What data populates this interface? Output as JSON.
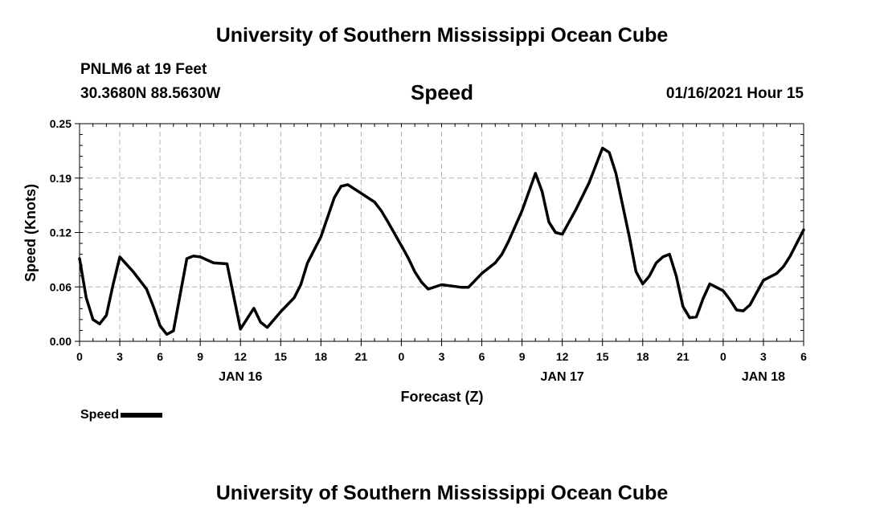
{
  "header": {
    "title": "University of Southern Mississippi Ocean Cube"
  },
  "footer": {
    "title": "University of Southern Mississippi Ocean Cube"
  },
  "station": {
    "name": "PNLM6 at 19 Feet",
    "coords": "30.3680N 88.5630W"
  },
  "chart_data": {
    "type": "line",
    "title": "Speed",
    "date_label": "01/16/2021 Hour 15",
    "xlabel": "Forecast (Z)",
    "ylabel": "Speed (Knots)",
    "ylim": [
      0,
      0.25
    ],
    "xlim": [
      0,
      54
    ],
    "grid": true,
    "legend_position": "bottom-left",
    "y_ticks": [
      {
        "value": 0,
        "label": "0.00"
      },
      {
        "value": 0.0625,
        "label": "0.06"
      },
      {
        "value": 0.125,
        "label": "0.12"
      },
      {
        "value": 0.1875,
        "label": "0.19"
      },
      {
        "value": 0.25,
        "label": "0.25"
      }
    ],
    "x_ticks": [
      {
        "value": 0,
        "label": "0"
      },
      {
        "value": 3,
        "label": "3"
      },
      {
        "value": 6,
        "label": "6"
      },
      {
        "value": 9,
        "label": "9"
      },
      {
        "value": 12,
        "label": "12"
      },
      {
        "value": 15,
        "label": "15"
      },
      {
        "value": 18,
        "label": "18"
      },
      {
        "value": 21,
        "label": "21"
      },
      {
        "value": 24,
        "label": "0"
      },
      {
        "value": 27,
        "label": "3"
      },
      {
        "value": 30,
        "label": "6"
      },
      {
        "value": 33,
        "label": "9"
      },
      {
        "value": 36,
        "label": "12"
      },
      {
        "value": 39,
        "label": "15"
      },
      {
        "value": 42,
        "label": "18"
      },
      {
        "value": 45,
        "label": "21"
      },
      {
        "value": 48,
        "label": "0"
      },
      {
        "value": 51,
        "label": "3"
      },
      {
        "value": 54,
        "label": "6"
      }
    ],
    "day_labels": [
      {
        "value": 12,
        "label": "JAN 16"
      },
      {
        "value": 36,
        "label": "JAN 17"
      },
      {
        "value": 51,
        "label": "JAN 18"
      }
    ],
    "series": [
      {
        "name": "Speed",
        "color": "#000000",
        "points": [
          [
            0,
            0.095
          ],
          [
            0.5,
            0.05
          ],
          [
            1,
            0.025
          ],
          [
            1.5,
            0.02
          ],
          [
            2,
            0.03
          ],
          [
            2.5,
            0.065
          ],
          [
            3,
            0.097
          ],
          [
            4,
            0.08
          ],
          [
            5,
            0.06
          ],
          [
            5.5,
            0.04
          ],
          [
            6,
            0.018
          ],
          [
            6.5,
            0.008
          ],
          [
            7,
            0.012
          ],
          [
            8,
            0.095
          ],
          [
            8.5,
            0.098
          ],
          [
            9,
            0.097
          ],
          [
            10,
            0.09
          ],
          [
            11,
            0.089
          ],
          [
            12,
            0.014
          ],
          [
            13,
            0.038
          ],
          [
            13.5,
            0.022
          ],
          [
            14,
            0.016
          ],
          [
            15,
            0.034
          ],
          [
            16,
            0.05
          ],
          [
            16.5,
            0.065
          ],
          [
            17,
            0.09
          ],
          [
            18,
            0.12
          ],
          [
            19,
            0.165
          ],
          [
            19.5,
            0.178
          ],
          [
            20,
            0.18
          ],
          [
            21,
            0.17
          ],
          [
            22,
            0.16
          ],
          [
            22.5,
            0.15
          ],
          [
            23,
            0.137
          ],
          [
            24,
            0.11
          ],
          [
            24.5,
            0.096
          ],
          [
            25,
            0.08
          ],
          [
            25.5,
            0.068
          ],
          [
            26,
            0.06
          ],
          [
            27,
            0.065
          ],
          [
            28,
            0.063
          ],
          [
            28.5,
            0.062
          ],
          [
            29,
            0.062
          ],
          [
            30,
            0.078
          ],
          [
            31,
            0.09
          ],
          [
            31.5,
            0.1
          ],
          [
            32,
            0.115
          ],
          [
            33,
            0.15
          ],
          [
            34,
            0.193
          ],
          [
            34.5,
            0.172
          ],
          [
            35,
            0.137
          ],
          [
            35.5,
            0.125
          ],
          [
            36,
            0.123
          ],
          [
            37,
            0.151
          ],
          [
            38,
            0.182
          ],
          [
            39,
            0.222
          ],
          [
            39.5,
            0.217
          ],
          [
            40,
            0.193
          ],
          [
            41,
            0.12
          ],
          [
            41.5,
            0.08
          ],
          [
            42,
            0.066
          ],
          [
            42.5,
            0.075
          ],
          [
            43,
            0.09
          ],
          [
            43.5,
            0.097
          ],
          [
            44,
            0.1
          ],
          [
            44.5,
            0.075
          ],
          [
            45,
            0.04
          ],
          [
            45.5,
            0.027
          ],
          [
            46,
            0.028
          ],
          [
            46.5,
            0.049
          ],
          [
            47,
            0.066
          ],
          [
            48,
            0.058
          ],
          [
            48.5,
            0.048
          ],
          [
            49,
            0.036
          ],
          [
            49.5,
            0.035
          ],
          [
            50,
            0.042
          ],
          [
            51,
            0.07
          ],
          [
            52,
            0.078
          ],
          [
            52.5,
            0.086
          ],
          [
            53,
            0.098
          ],
          [
            54,
            0.128
          ]
        ]
      }
    ]
  }
}
